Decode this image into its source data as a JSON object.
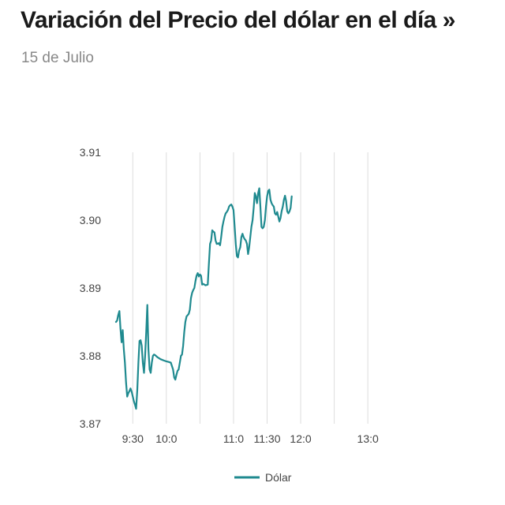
{
  "header": {
    "title": "Variación del Precio del dólar en el día »",
    "subtitle": "15 de Julio"
  },
  "colors": {
    "series": "#1f8a8f",
    "gridline": "#dddddd",
    "axis_text": "#444444"
  },
  "chart_data": {
    "type": "line",
    "title": "Variación del Precio del dólar en el día »",
    "subtitle": "15 de Julio",
    "xlabel": "",
    "ylabel": "",
    "xlim": [
      "09:15",
      "13:45"
    ],
    "ylim": [
      3.87,
      3.91
    ],
    "y_ticks": [
      "3.91",
      "3.90",
      "3.89",
      "3.88",
      "3.87"
    ],
    "x_ticks": [
      {
        "label": "9:30",
        "time": "09:30"
      },
      {
        "label": "10:0",
        "time": "10:00"
      },
      {
        "label": "11:0",
        "time": "11:00"
      },
      {
        "label": "11:30",
        "time": "11:30"
      },
      {
        "label": "12:0",
        "time": "12:00"
      },
      {
        "label": "13:0",
        "time": "13:00"
      }
    ],
    "x_gridlines": [
      "09:30",
      "10:00",
      "10:30",
      "11:00",
      "11:30",
      "12:00",
      "12:30",
      "13:00"
    ],
    "grid": "vertical",
    "legend_position": "bottom-center",
    "series": [
      {
        "name": "Dólar",
        "color": "#1f8a8f",
        "points": [
          [
            "09:15",
            3.885
          ],
          [
            "09:16",
            3.8852
          ],
          [
            "09:17",
            3.886
          ],
          [
            "09:18",
            3.8866
          ],
          [
            "09:19",
            3.884
          ],
          [
            "09:20",
            3.882
          ],
          [
            "09:21",
            3.8838
          ],
          [
            "09:22",
            3.881
          ],
          [
            "09:23",
            3.879
          ],
          [
            "09:24",
            3.876
          ],
          [
            "09:25",
            3.874
          ],
          [
            "09:26",
            3.8745
          ],
          [
            "09:27",
            3.8748
          ],
          [
            "09:28",
            3.8752
          ],
          [
            "09:29",
            3.8747
          ],
          [
            "09:30",
            3.874
          ],
          [
            "09:31",
            3.8733
          ],
          [
            "09:32",
            3.8728
          ],
          [
            "09:33",
            3.8722
          ],
          [
            "09:34",
            3.875
          ],
          [
            "09:35",
            3.879
          ],
          [
            "09:36",
            3.8822
          ],
          [
            "09:37",
            3.8823
          ],
          [
            "09:38",
            3.8815
          ],
          [
            "09:39",
            3.879
          ],
          [
            "09:40",
            3.8775
          ],
          [
            "09:41",
            3.88
          ],
          [
            "09:42",
            3.8835
          ],
          [
            "09:43",
            3.8875
          ],
          [
            "09:44",
            3.881
          ],
          [
            "09:45",
            3.878
          ],
          [
            "09:46",
            3.8775
          ],
          [
            "09:47",
            3.879
          ],
          [
            "09:48",
            3.88
          ],
          [
            "09:49",
            3.8802
          ],
          [
            "09:50",
            3.8801
          ],
          [
            "09:52",
            3.8798
          ],
          [
            "09:55",
            3.8795
          ],
          [
            "09:58",
            3.8793
          ],
          [
            "10:00",
            3.8792
          ],
          [
            "10:02",
            3.8791
          ],
          [
            "10:04",
            3.879
          ],
          [
            "10:06",
            3.878
          ],
          [
            "10:07",
            3.8768
          ],
          [
            "10:08",
            3.8765
          ],
          [
            "10:09",
            3.8772
          ],
          [
            "10:10",
            3.8778
          ],
          [
            "10:11",
            3.878
          ],
          [
            "10:12",
            3.879
          ],
          [
            "10:13",
            3.88
          ],
          [
            "10:14",
            3.8802
          ],
          [
            "10:15",
            3.8815
          ],
          [
            "10:16",
            3.8835
          ],
          [
            "10:17",
            3.885
          ],
          [
            "10:18",
            3.8858
          ],
          [
            "10:19",
            3.886
          ],
          [
            "10:20",
            3.8862
          ],
          [
            "10:21",
            3.8868
          ],
          [
            "10:22",
            3.8885
          ],
          [
            "10:23",
            3.8893
          ],
          [
            "10:24",
            3.8897
          ],
          [
            "10:25",
            3.89
          ],
          [
            "10:26",
            3.891
          ],
          [
            "10:27",
            3.8918
          ],
          [
            "10:28",
            3.8922
          ],
          [
            "10:29",
            3.8917
          ],
          [
            "10:30",
            3.892
          ],
          [
            "10:31",
            3.8918
          ],
          [
            "10:32",
            3.8905
          ],
          [
            "10:33",
            3.8906
          ],
          [
            "10:35",
            3.8904
          ],
          [
            "10:37",
            3.8905
          ],
          [
            "10:38",
            3.8935
          ],
          [
            "10:39",
            3.8965
          ],
          [
            "10:40",
            3.897
          ],
          [
            "10:41",
            3.8985
          ],
          [
            "10:42",
            3.8983
          ],
          [
            "10:43",
            3.8982
          ],
          [
            "10:44",
            3.897
          ],
          [
            "10:45",
            3.8965
          ],
          [
            "10:47",
            3.8966
          ],
          [
            "10:48",
            3.8963
          ],
          [
            "10:49",
            3.8975
          ],
          [
            "10:50",
            3.899
          ],
          [
            "10:51",
            3.8998
          ],
          [
            "10:52",
            3.9005
          ],
          [
            "10:53",
            3.901
          ],
          [
            "10:54",
            3.9012
          ],
          [
            "10:55",
            3.9015
          ],
          [
            "10:56",
            3.902
          ],
          [
            "10:57",
            3.9022
          ],
          [
            "10:58",
            3.9023
          ],
          [
            "10:59",
            3.902
          ],
          [
            "11:00",
            3.9015
          ],
          [
            "11:01",
            3.899
          ],
          [
            "11:02",
            3.8965
          ],
          [
            "11:03",
            3.8947
          ],
          [
            "11:04",
            3.8945
          ],
          [
            "11:05",
            3.8955
          ],
          [
            "11:06",
            3.896
          ],
          [
            "11:07",
            3.8975
          ],
          [
            "11:08",
            3.898
          ],
          [
            "11:09",
            3.8975
          ],
          [
            "11:10",
            3.8972
          ],
          [
            "11:11",
            3.897
          ],
          [
            "11:12",
            3.8965
          ],
          [
            "11:13",
            3.895
          ],
          [
            "11:14",
            3.896
          ],
          [
            "11:15",
            3.8975
          ],
          [
            "11:16",
            3.899
          ],
          [
            "11:17",
            3.9
          ],
          [
            "11:18",
            3.9018
          ],
          [
            "11:19",
            3.904
          ],
          [
            "11:20",
            3.9035
          ],
          [
            "11:21",
            3.9025
          ],
          [
            "11:22",
            3.904
          ],
          [
            "11:23",
            3.9047
          ],
          [
            "11:24",
            3.902
          ],
          [
            "11:25",
            3.899
          ],
          [
            "11:26",
            3.8988
          ],
          [
            "11:27",
            3.899
          ],
          [
            "11:28",
            3.9
          ],
          [
            "11:29",
            3.902
          ],
          [
            "11:30",
            3.9035
          ],
          [
            "11:31",
            3.9043
          ],
          [
            "11:32",
            3.9045
          ],
          [
            "11:33",
            3.903
          ],
          [
            "11:34",
            3.9025
          ],
          [
            "11:35",
            3.9022
          ],
          [
            "11:36",
            3.902
          ],
          [
            "11:37",
            3.901
          ],
          [
            "11:38",
            3.9008
          ],
          [
            "11:39",
            3.9012
          ],
          [
            "11:40",
            3.9005
          ],
          [
            "11:41",
            3.8998
          ],
          [
            "11:42",
            3.9003
          ],
          [
            "11:43",
            3.9013
          ],
          [
            "11:44",
            3.902
          ],
          [
            "11:45",
            3.903
          ],
          [
            "11:46",
            3.9036
          ],
          [
            "11:47",
            3.9028
          ],
          [
            "11:48",
            3.9013
          ],
          [
            "11:49",
            3.901
          ],
          [
            "11:50",
            3.9013
          ],
          [
            "11:51",
            3.9018
          ],
          [
            "11:52",
            3.9035
          ]
        ]
      }
    ]
  },
  "legend": {
    "label": "Dólar"
  }
}
